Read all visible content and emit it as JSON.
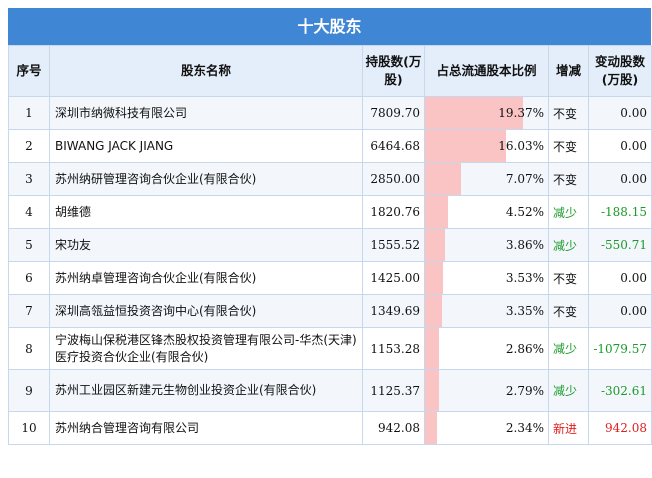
{
  "title": "十大股东",
  "headers": {
    "no": "序号",
    "name": "股东名称",
    "shares": "持股数(万股)",
    "ratio": "占总流通股本比例",
    "change": "增减",
    "delta": "变动股数(万股)"
  },
  "colors": {
    "header_bg": "#3f86d4",
    "bar": "#fbc4c4",
    "decrease": "#1a9a2a",
    "new": "#e02020"
  },
  "rows": [
    {
      "no": "1",
      "name": "深圳市纳微科技有限公司",
      "shares": "7809.70",
      "ratio": "19.37%",
      "ratio_value": 19.37,
      "change": "不变",
      "delta": "0.00"
    },
    {
      "no": "2",
      "name": "BIWANG JACK JIANG",
      "shares": "6464.68",
      "ratio": "16.03%",
      "ratio_value": 16.03,
      "change": "不变",
      "delta": "0.00"
    },
    {
      "no": "3",
      "name": "苏州纳研管理咨询合伙企业(有限合伙)",
      "shares": "2850.00",
      "ratio": "7.07%",
      "ratio_value": 7.07,
      "change": "不变",
      "delta": "0.00"
    },
    {
      "no": "4",
      "name": "胡维德",
      "shares": "1820.76",
      "ratio": "4.52%",
      "ratio_value": 4.52,
      "change": "减少",
      "delta": "-188.15"
    },
    {
      "no": "5",
      "name": "宋功友",
      "shares": "1555.52",
      "ratio": "3.86%",
      "ratio_value": 3.86,
      "change": "减少",
      "delta": "-550.71"
    },
    {
      "no": "6",
      "name": "苏州纳卓管理咨询合伙企业(有限合伙)",
      "shares": "1425.00",
      "ratio": "3.53%",
      "ratio_value": 3.53,
      "change": "不变",
      "delta": "0.00"
    },
    {
      "no": "7",
      "name": "深圳高瓴益恒投资咨询中心(有限合伙)",
      "shares": "1349.69",
      "ratio": "3.35%",
      "ratio_value": 3.35,
      "change": "不变",
      "delta": "0.00"
    },
    {
      "no": "8",
      "name": "宁波梅山保税港区锋杰股权投资管理有限公司-华杰(天津)医疗投资合伙企业(有限合伙)",
      "shares": "1153.28",
      "ratio": "2.86%",
      "ratio_value": 2.86,
      "change": "减少",
      "delta": "-1079.57"
    },
    {
      "no": "9",
      "name": "苏州工业园区新建元生物创业投资企业(有限合伙)",
      "shares": "1125.37",
      "ratio": "2.79%",
      "ratio_value": 2.79,
      "change": "减少",
      "delta": "-302.61"
    },
    {
      "no": "10",
      "name": "苏州纳合管理咨询有限公司",
      "shares": "942.08",
      "ratio": "2.34%",
      "ratio_value": 2.34,
      "change": "新进",
      "delta": "942.08"
    }
  ]
}
